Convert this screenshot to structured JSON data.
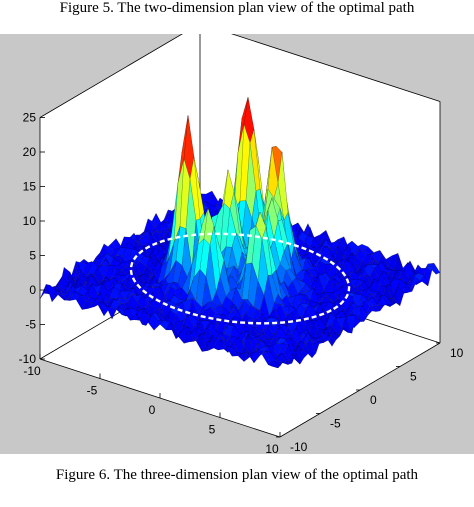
{
  "captions": {
    "top": "Figure 5.    The two-dimension plan view of the optimal path",
    "bottom": "Figure 6.    The three-dimension plan view of the optimal path"
  },
  "chart_data": {
    "type": "surface",
    "title": "",
    "xlabel": "",
    "ylabel": "",
    "zlabel": "",
    "xlim": [
      -10,
      10
    ],
    "ylim": [
      -10,
      10
    ],
    "zlim": [
      -10,
      25
    ],
    "x_ticks": [
      "-10",
      "-5",
      "0",
      "5",
      "10"
    ],
    "y_ticks": [
      "-10",
      "-5",
      "0",
      "5",
      "10"
    ],
    "z_ticks": [
      "25",
      "20",
      "15",
      "10",
      "5",
      "0",
      "-5",
      "-10"
    ],
    "colormap": "jet",
    "grid": false,
    "surface": "noisy base near z=0 with a cluster of tall peaks (max about 23) near the center",
    "path": {
      "color": "#ffffff",
      "description": "dashed white optimal path drawn around the peaks near z=0"
    },
    "peaks": [
      {
        "x": -2,
        "y": 4,
        "z": 23
      },
      {
        "x": -3,
        "y": -2,
        "z": 21
      },
      {
        "x": 1,
        "y": 3,
        "z": 18
      },
      {
        "x": 3,
        "y": -2,
        "z": 13
      },
      {
        "x": -1,
        "y": 0,
        "z": 14
      },
      {
        "x": 0,
        "y": -4,
        "z": 12
      },
      {
        "x": 2,
        "y": 1,
        "z": 12
      }
    ]
  }
}
